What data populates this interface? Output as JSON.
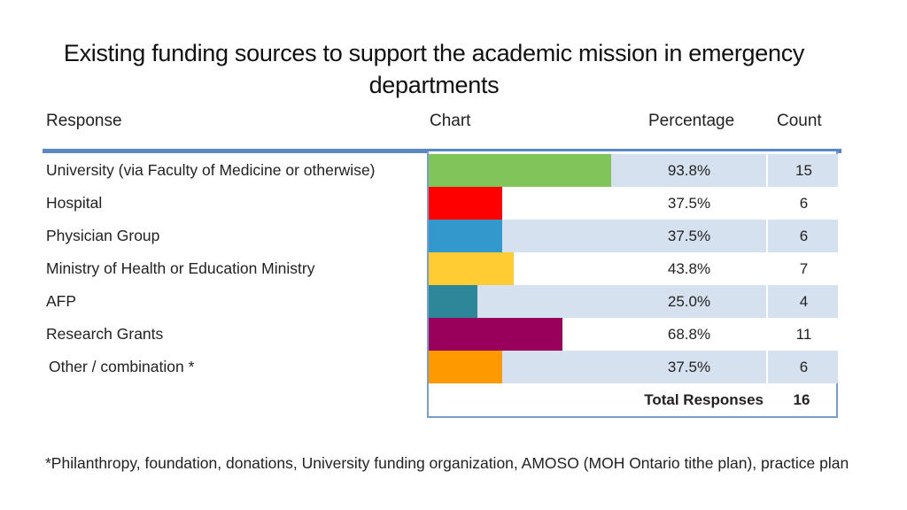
{
  "title": "Existing funding sources to support the academic mission in emergency departments",
  "headers": {
    "response": "Response",
    "chart": "Chart",
    "percentage": "Percentage",
    "count": "Count"
  },
  "chart_data": {
    "type": "bar",
    "orientation": "horizontal",
    "title": "Existing funding sources to support the academic mission in emergency departments",
    "categories": [
      "University (via Faculty of Medicine or otherwise)",
      "Hospital",
      "Physician Group",
      "Ministry of Health or Education Ministry",
      "AFP",
      "Research Grants",
      "Other / combination *"
    ],
    "values": [
      93.8,
      37.5,
      37.5,
      43.8,
      25.0,
      68.8,
      37.5
    ],
    "percent_labels": [
      "93.8%",
      "37.5%",
      "37.5%",
      "43.8%",
      "25.0%",
      "68.8%",
      "37.5%"
    ],
    "counts": [
      "15",
      "6",
      "6",
      "7",
      "4",
      "11",
      "6"
    ],
    "colors": [
      "#80c45a",
      "#ff0000",
      "#3399cc",
      "#ffcc33",
      "#2e8799",
      "#99005c",
      "#ff9900"
    ],
    "xlim": [
      0,
      100
    ],
    "total_label": "Total Responses",
    "total_value": "16"
  },
  "footnote": "*Philanthropy, foundation, donations, University funding organization, AMOSO (MOH Ontario tithe plan), practice plan"
}
